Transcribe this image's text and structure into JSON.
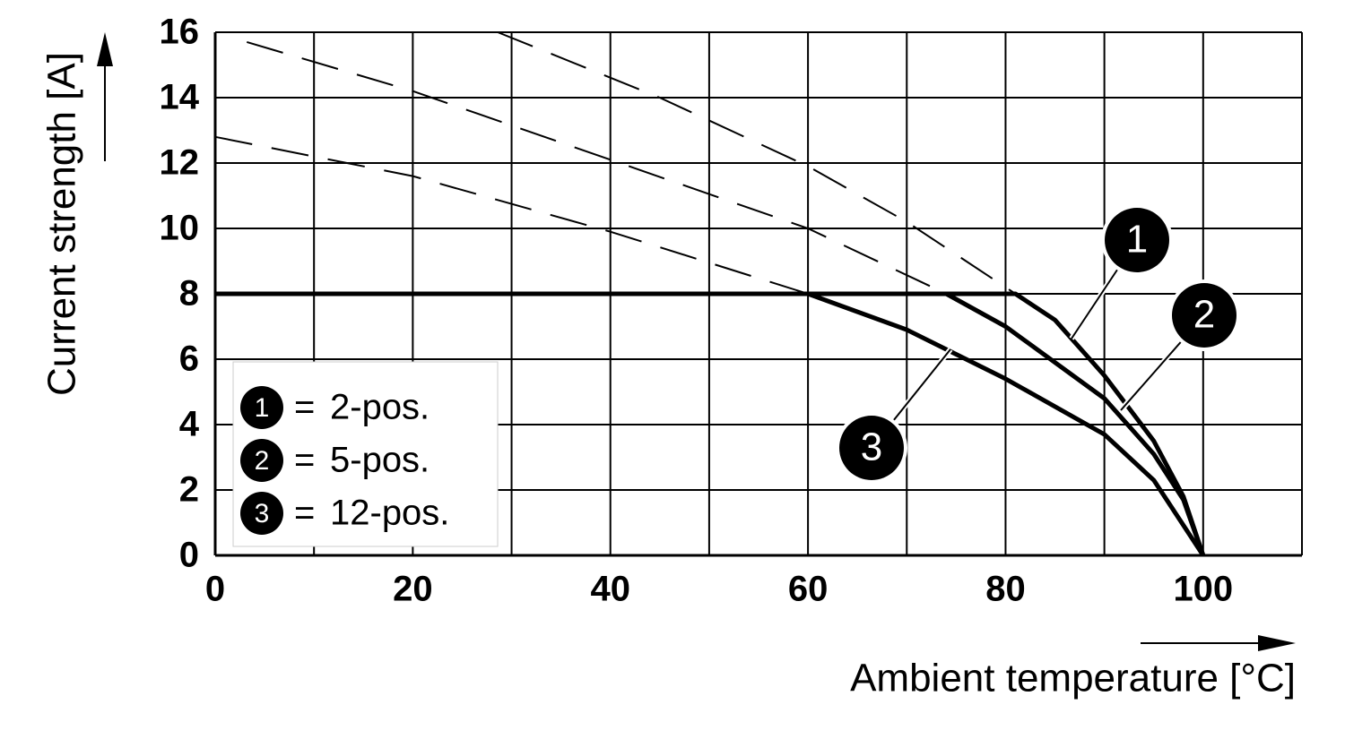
{
  "chart_data": {
    "type": "line",
    "xlabel": "Ambient temperature [°C]",
    "ylabel": "Current strength [A]",
    "xlim": [
      0,
      110
    ],
    "ylim": [
      0,
      16
    ],
    "xticks": [
      0,
      20,
      40,
      60,
      80,
      100
    ],
    "xgrid": [
      0,
      10,
      20,
      30,
      40,
      50,
      60,
      70,
      80,
      90,
      100,
      110
    ],
    "yticks": [
      0,
      2,
      4,
      6,
      8,
      10,
      12,
      14,
      16
    ],
    "grid": true,
    "legend_separator": "=",
    "series": [
      {
        "name": "2-pos.",
        "badge": "1",
        "color": "#000000",
        "x": [
          0,
          81,
          85,
          90,
          95,
          98,
          100
        ],
        "values": [
          8,
          8,
          7.2,
          5.5,
          3.5,
          1.8,
          0
        ],
        "dashed": {
          "x": [
            28.6,
            45,
            60,
            70,
            81
          ],
          "values": [
            16,
            14,
            11.9,
            10.2,
            8
          ]
        }
      },
      {
        "name": "5-pos.",
        "badge": "2",
        "color": "#000000",
        "x": [
          0,
          74,
          80,
          90,
          95,
          98,
          100
        ],
        "values": [
          8,
          8,
          7,
          4.8,
          3.1,
          1.7,
          0
        ],
        "dashed": {
          "x": [
            3.2,
            20,
            40,
            60,
            74
          ],
          "values": [
            15.7,
            14.2,
            12.1,
            10,
            8
          ]
        }
      },
      {
        "name": "12-pos.",
        "badge": "3",
        "color": "#000000",
        "x": [
          0,
          60,
          70,
          80,
          90,
          95,
          100
        ],
        "values": [
          8,
          8,
          6.9,
          5.4,
          3.7,
          2.3,
          0
        ],
        "dashed": {
          "x": [
            0,
            20,
            40,
            60
          ],
          "values": [
            12.8,
            11.6,
            9.9,
            8
          ]
        }
      }
    ]
  }
}
